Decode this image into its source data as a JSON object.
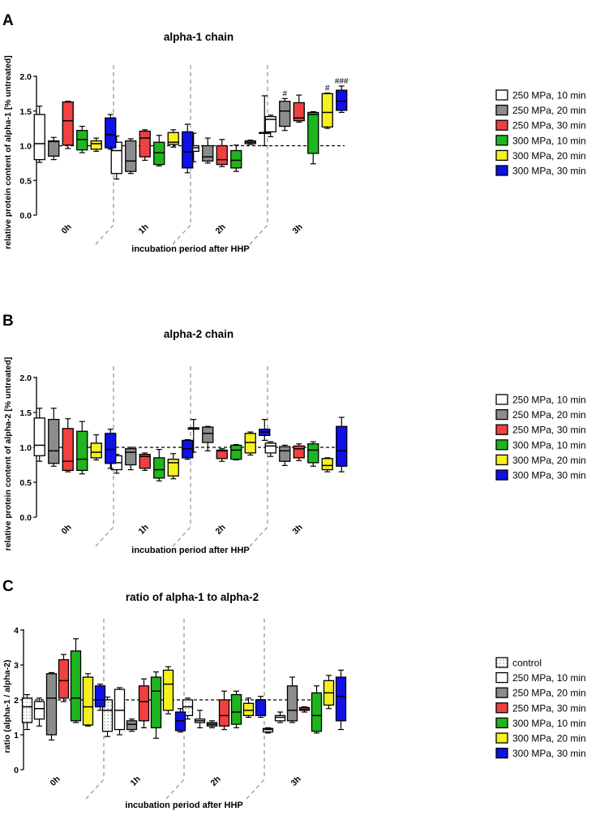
{
  "colors": {
    "250 MPa, 10 min": "#ffffff",
    "250 MPa, 20 min": "#8c8c8c",
    "250 MPa, 30 min": "#f04040",
    "300 MPa, 10 min": "#1fb51f",
    "300 MPa, 20 min": "#f5f020",
    "300 MPa, 30 min": "#1010e8",
    "control": "#ffffff"
  },
  "chart_data": [
    {
      "type": "box",
      "panel_label": "A",
      "title": "alpha-1 chain",
      "xlabel": "incubation period after HHP",
      "ylabel": "relative protein content of alpha-1 [% untreated]",
      "ylim": [
        0,
        2
      ],
      "yticks": [
        "0.0",
        "0.5",
        "1.0",
        "1.5",
        "2.0"
      ],
      "reference_line": 1.0,
      "categories": [
        "0h",
        "1h",
        "2h",
        "3h"
      ],
      "legend": [
        "250 MPa, 10 min",
        "250 MPa, 20 min",
        "250 MPa, 30 min",
        "300 MPa, 10 min",
        "300 MPa, 20 min",
        "300 MPa, 30 min"
      ],
      "series": [
        {
          "name": "250 MPa, 10 min",
          "boxes": [
            [
              0.76,
              0.8,
              1.03,
              1.45,
              1.57
            ],
            [
              0.52,
              0.6,
              0.93,
              1.05,
              1.14
            ],
            [
              0.77,
              0.92,
              0.97,
              1.0,
              1.18
            ],
            [
              1.13,
              1.2,
              1.38,
              1.42,
              1.44
            ]
          ],
          "annotations": [
            "",
            "",
            "",
            ""
          ]
        },
        {
          "name": "250 MPa, 20 min",
          "boxes": [
            [
              0.8,
              0.85,
              1.06,
              1.07,
              1.12
            ],
            [
              0.6,
              0.63,
              0.78,
              1.07,
              1.1
            ],
            [
              0.75,
              0.78,
              0.84,
              1.0,
              1.11
            ],
            [
              1.22,
              1.28,
              1.5,
              1.64,
              1.68
            ]
          ],
          "annotations": [
            "",
            "",
            "",
            "#"
          ]
        },
        {
          "name": "250 MPa, 30 min",
          "boxes": [
            [
              0.96,
              1.01,
              1.36,
              1.63,
              1.64
            ],
            [
              0.79,
              0.84,
              1.11,
              1.21,
              1.23
            ],
            [
              0.7,
              0.73,
              0.8,
              1.0,
              1.09
            ],
            [
              1.34,
              1.36,
              1.4,
              1.62,
              1.73
            ]
          ],
          "annotations": [
            "",
            "",
            "",
            ""
          ]
        },
        {
          "name": "300 MPa, 10 min",
          "boxes": [
            [
              0.9,
              0.94,
              1.09,
              1.22,
              1.28
            ],
            [
              0.71,
              0.73,
              0.9,
              1.05,
              1.15
            ],
            [
              0.63,
              0.68,
              0.79,
              0.93,
              1.01
            ],
            [
              0.74,
              0.89,
              1.45,
              1.48,
              1.49
            ]
          ],
          "annotations": [
            "",
            "",
            "",
            ""
          ]
        },
        {
          "name": "300 MPa, 20 min",
          "boxes": [
            [
              0.92,
              0.95,
              1.03,
              1.07,
              1.11
            ],
            [
              0.98,
              1.02,
              1.05,
              1.19,
              1.23
            ],
            [
              1.02,
              1.03,
              1.05,
              1.07,
              1.08
            ],
            [
              1.25,
              1.27,
              1.48,
              1.75,
              1.76
            ]
          ],
          "annotations": [
            "",
            "",
            "",
            "#"
          ]
        },
        {
          "name": "300 MPa, 30 min",
          "boxes": [
            [
              0.95,
              0.97,
              1.16,
              1.4,
              1.45
            ],
            [
              0.61,
              0.68,
              0.91,
              1.2,
              1.31
            ],
            [
              1.0,
              1.18,
              1.19,
              1.19,
              1.72
            ],
            [
              1.48,
              1.51,
              1.64,
              1.8,
              1.86
            ]
          ],
          "annotations": [
            "",
            "",
            "",
            "###"
          ]
        }
      ]
    },
    {
      "type": "box",
      "panel_label": "B",
      "title": "alpha-2 chain",
      "xlabel": "incubation period after HHP",
      "ylabel": "relative protein content of alpha-2 [% untreated]",
      "ylim": [
        0,
        2
      ],
      "yticks": [
        "0.0",
        "0.5",
        "1.0",
        "1.5",
        "2.0"
      ],
      "reference_line": 1.0,
      "categories": [
        "0h",
        "1h",
        "2h",
        "3h"
      ],
      "legend": [
        "250 MPa, 10 min",
        "250 MPa, 20 min",
        "250 MPa, 30 min",
        "300 MPa, 10 min",
        "300 MPa, 20 min",
        "300 MPa, 30 min"
      ],
      "series": [
        {
          "name": "250 MPa, 10 min",
          "boxes": [
            [
              0.8,
              0.88,
              1.03,
              1.42,
              1.56
            ],
            [
              0.63,
              0.68,
              0.78,
              0.88,
              0.9
            ],
            [
              0.93,
              1.26,
              1.27,
              1.28,
              1.4
            ],
            [
              0.87,
              0.92,
              1.02,
              1.06,
              1.08
            ]
          ],
          "annotations": [
            "",
            "",
            "",
            ""
          ]
        },
        {
          "name": "250 MPa, 20 min",
          "boxes": [
            [
              0.73,
              0.77,
              0.95,
              1.4,
              1.56
            ],
            [
              0.68,
              0.75,
              0.93,
              0.98,
              1.0
            ],
            [
              0.95,
              1.07,
              1.2,
              1.29,
              1.3
            ],
            [
              0.74,
              0.8,
              0.95,
              1.01,
              1.03
            ]
          ],
          "annotations": [
            "",
            "",
            "",
            ""
          ]
        },
        {
          "name": "250 MPa, 30 min",
          "boxes": [
            [
              0.65,
              0.67,
              0.8,
              1.27,
              1.41
            ],
            [
              0.67,
              0.7,
              0.87,
              0.9,
              0.92
            ],
            [
              0.8,
              0.84,
              0.95,
              0.96,
              0.98
            ],
            [
              0.81,
              0.85,
              0.98,
              1.02,
              1.05
            ]
          ],
          "annotations": [
            "",
            "",
            "",
            ""
          ]
        },
        {
          "name": "300 MPa, 10 min",
          "boxes": [
            [
              0.62,
              0.67,
              0.83,
              1.23,
              1.37
            ],
            [
              0.52,
              0.56,
              0.68,
              0.85,
              0.97
            ],
            [
              0.82,
              0.83,
              0.96,
              1.03,
              1.04
            ],
            [
              0.73,
              0.78,
              0.96,
              1.05,
              1.08
            ]
          ],
          "annotations": [
            "",
            "",
            "",
            ""
          ]
        },
        {
          "name": "300 MPa, 20 min",
          "boxes": [
            [
              0.82,
              0.85,
              0.93,
              1.06,
              1.18
            ],
            [
              0.55,
              0.59,
              0.78,
              0.83,
              0.91
            ],
            [
              0.89,
              0.92,
              1.07,
              1.2,
              1.22
            ],
            [
              0.65,
              0.68,
              0.74,
              0.84,
              0.85
            ]
          ],
          "annotations": [
            "",
            "",
            "",
            ""
          ]
        },
        {
          "name": "300 MPa, 30 min",
          "boxes": [
            [
              0.7,
              0.77,
              0.97,
              1.2,
              1.26
            ],
            [
              0.83,
              0.85,
              0.98,
              1.1,
              1.11
            ],
            [
              1.1,
              1.17,
              1.22,
              1.26,
              1.4
            ],
            [
              0.65,
              0.73,
              0.95,
              1.3,
              1.43
            ]
          ],
          "annotations": [
            "",
            "",
            "",
            ""
          ]
        }
      ]
    },
    {
      "type": "box",
      "panel_label": "C",
      "title": "ratio of alpha-1 to alpha-2",
      "xlabel": "incubation period after HHP",
      "ylabel": "ratio (alpha-1 / alpha-2)",
      "ylim": [
        0,
        4
      ],
      "yticks": [
        "0",
        "1",
        "2",
        "3",
        "4"
      ],
      "reference_line": 2.0,
      "categories": [
        "0h",
        "1h",
        "2h",
        "3h"
      ],
      "legend": [
        "control",
        "250 MPa, 10 min",
        "250 MPa, 20 min",
        "250 MPa, 30 min",
        "300 MPa, 10 min",
        "300 MPa, 20 min",
        "300 MPa, 30 min"
      ],
      "series": [
        {
          "name": "control",
          "boxes": [
            [
              1.15,
              1.35,
              1.8,
              2.05,
              2.15
            ],
            [
              0.95,
              1.1,
              1.7,
              2.0,
              2.08
            ],
            [
              1.45,
              1.55,
              1.8,
              2.0,
              2.05
            ],
            [
              1.05,
              1.08,
              1.15,
              1.18,
              1.2
            ]
          ],
          "annotations": [
            "",
            "",
            "",
            ""
          ]
        },
        {
          "name": "250 MPa, 10 min",
          "boxes": [
            [
              1.25,
              1.45,
              1.75,
              1.95,
              2.05
            ],
            [
              1.0,
              1.15,
              1.7,
              2.3,
              2.35
            ],
            [
              1.2,
              1.35,
              1.4,
              1.45,
              1.7
            ],
            [
              1.35,
              1.4,
              1.5,
              1.55,
              1.65
            ]
          ],
          "annotations": [
            "",
            "",
            "",
            ""
          ]
        },
        {
          "name": "250 MPa, 20 min",
          "boxes": [
            [
              0.85,
              1.0,
              2.05,
              2.75,
              2.78
            ],
            [
              1.1,
              1.15,
              1.3,
              1.4,
              1.45
            ],
            [
              1.2,
              1.25,
              1.3,
              1.35,
              1.4
            ],
            [
              1.35,
              1.4,
              1.7,
              2.4,
              2.65
            ]
          ],
          "annotations": [
            "",
            "",
            "",
            ""
          ]
        },
        {
          "name": "250 MPa, 30 min",
          "boxes": [
            [
              1.95,
              2.05,
              2.55,
              3.15,
              3.3
            ],
            [
              1.2,
              1.4,
              1.95,
              2.4,
              2.6
            ],
            [
              1.15,
              1.25,
              1.55,
              2.0,
              2.25
            ],
            [
              1.65,
              1.7,
              1.73,
              1.78,
              1.8
            ]
          ],
          "annotations": [
            "",
            "",
            "",
            ""
          ]
        },
        {
          "name": "300 MPa, 10 min",
          "boxes": [
            [
              1.35,
              1.4,
              2.05,
              3.4,
              3.75
            ],
            [
              0.9,
              1.2,
              2.25,
              2.65,
              2.8
            ],
            [
              1.2,
              1.3,
              1.65,
              2.15,
              2.25
            ],
            [
              1.05,
              1.1,
              1.55,
              2.2,
              2.4
            ]
          ],
          "annotations": [
            "",
            "",
            "",
            ""
          ]
        },
        {
          "name": "300 MPa, 20 min",
          "boxes": [
            [
              1.25,
              1.28,
              1.8,
              2.65,
              2.75
            ],
            [
              1.6,
              1.7,
              2.45,
              2.85,
              2.95
            ],
            [
              1.5,
              1.55,
              1.7,
              1.9,
              2.05
            ],
            [
              1.75,
              1.85,
              2.2,
              2.55,
              2.7
            ]
          ],
          "annotations": [
            "",
            "",
            "",
            ""
          ]
        },
        {
          "name": "300 MPa, 30 min",
          "boxes": [
            [
              1.7,
              1.8,
              2.0,
              2.4,
              2.45
            ],
            [
              1.08,
              1.12,
              1.4,
              1.65,
              1.75
            ],
            [
              1.5,
              1.55,
              2.0,
              2.0,
              2.1
            ],
            [
              1.15,
              1.4,
              2.1,
              2.65,
              2.85
            ]
          ],
          "annotations": [
            "",
            "",
            "",
            ""
          ]
        }
      ]
    }
  ]
}
